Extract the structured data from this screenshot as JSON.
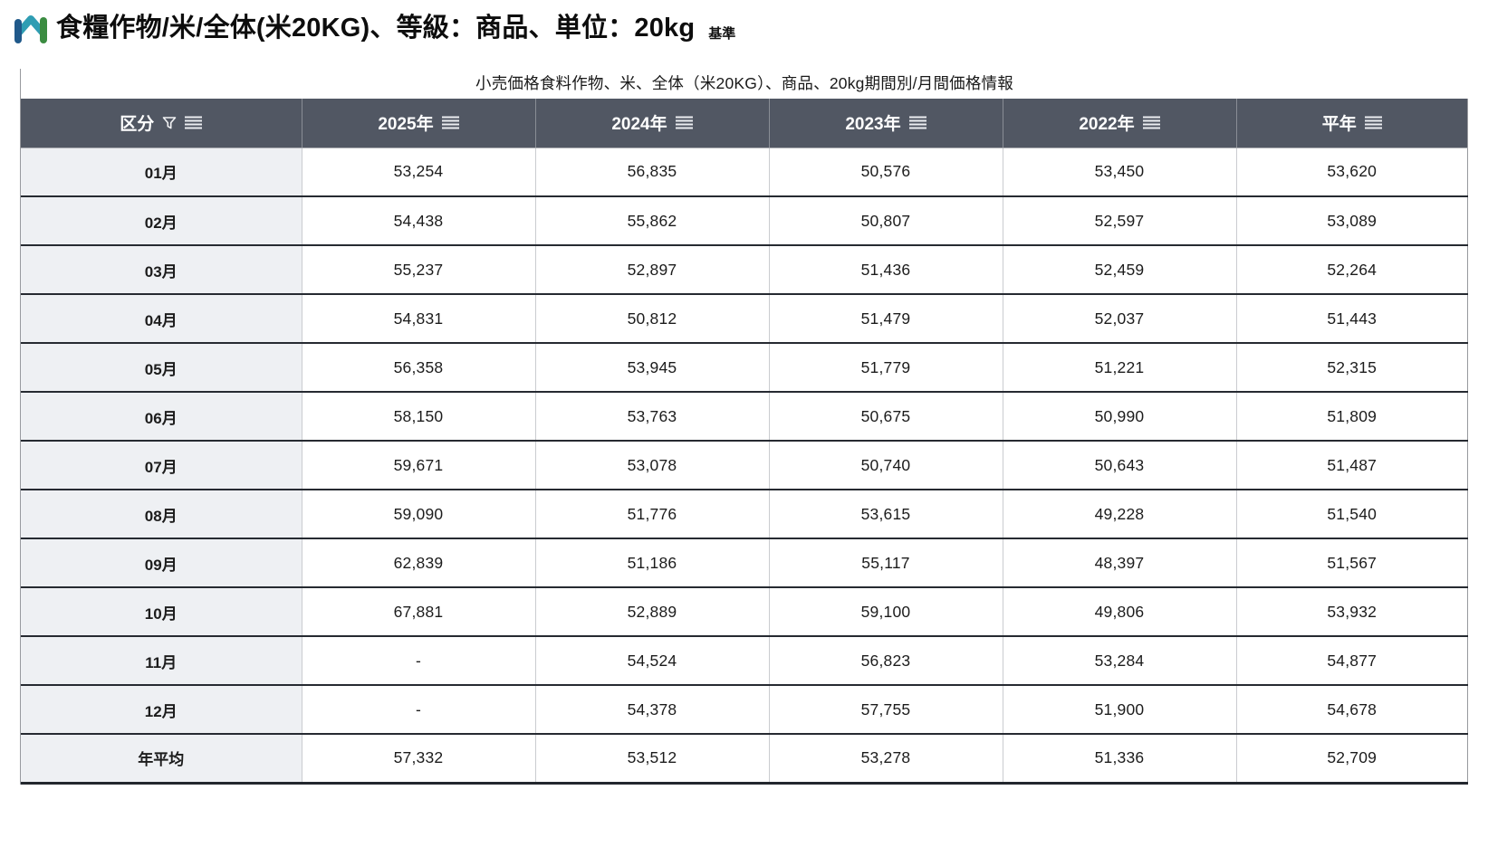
{
  "header": {
    "title": "食糧作物/米/全体(米20KG)、等級：商品、単位：20kg",
    "standard_label": "基準",
    "logo_icon": "m-logo-icon"
  },
  "table": {
    "caption": "小売価格食料作物、米、全体（米20KG）、商品、20kg期間別/月間価格情報",
    "columns": [
      {
        "label": "区分",
        "icons": [
          "filter-icon",
          "menu-icon"
        ]
      },
      {
        "label": "2025年",
        "icons": [
          "menu-icon"
        ]
      },
      {
        "label": "2024年",
        "icons": [
          "menu-icon"
        ]
      },
      {
        "label": "2023年",
        "icons": [
          "menu-icon"
        ]
      },
      {
        "label": "2022年",
        "icons": [
          "menu-icon"
        ]
      },
      {
        "label": "平年",
        "icons": [
          "menu-icon"
        ]
      }
    ],
    "rows": [
      {
        "label": "01月",
        "values": [
          "53,254",
          "56,835",
          "50,576",
          "53,450",
          "53,620"
        ]
      },
      {
        "label": "02月",
        "values": [
          "54,438",
          "55,862",
          "50,807",
          "52,597",
          "53,089"
        ]
      },
      {
        "label": "03月",
        "values": [
          "55,237",
          "52,897",
          "51,436",
          "52,459",
          "52,264"
        ]
      },
      {
        "label": "04月",
        "values": [
          "54,831",
          "50,812",
          "51,479",
          "52,037",
          "51,443"
        ]
      },
      {
        "label": "05月",
        "values": [
          "56,358",
          "53,945",
          "51,779",
          "51,221",
          "52,315"
        ]
      },
      {
        "label": "06月",
        "values": [
          "58,150",
          "53,763",
          "50,675",
          "50,990",
          "51,809"
        ]
      },
      {
        "label": "07月",
        "values": [
          "59,671",
          "53,078",
          "50,740",
          "50,643",
          "51,487"
        ]
      },
      {
        "label": "08月",
        "values": [
          "59,090",
          "51,776",
          "53,615",
          "49,228",
          "51,540"
        ]
      },
      {
        "label": "09月",
        "values": [
          "62,839",
          "51,186",
          "55,117",
          "48,397",
          "51,567"
        ]
      },
      {
        "label": "10月",
        "values": [
          "67,881",
          "52,889",
          "59,100",
          "49,806",
          "53,932"
        ]
      },
      {
        "label": "11月",
        "values": [
          "-",
          "54,524",
          "56,823",
          "53,284",
          "54,877"
        ]
      },
      {
        "label": "12月",
        "values": [
          "-",
          "54,378",
          "57,755",
          "51,900",
          "54,678"
        ]
      },
      {
        "label": "年平均",
        "values": [
          "57,332",
          "53,512",
          "53,278",
          "51,336",
          "52,709"
        ]
      }
    ]
  },
  "colors": {
    "header_bg": "#515763",
    "header_text": "#ffffff",
    "row_label_bg": "#eef0f3",
    "row_divider_dark": "#262a31",
    "cell_divider_light": "#caccd0",
    "outer_border": "#97999e",
    "logo_blue": "#20598a",
    "logo_teal": "#2f9db3",
    "logo_green": "#3b8c41"
  }
}
